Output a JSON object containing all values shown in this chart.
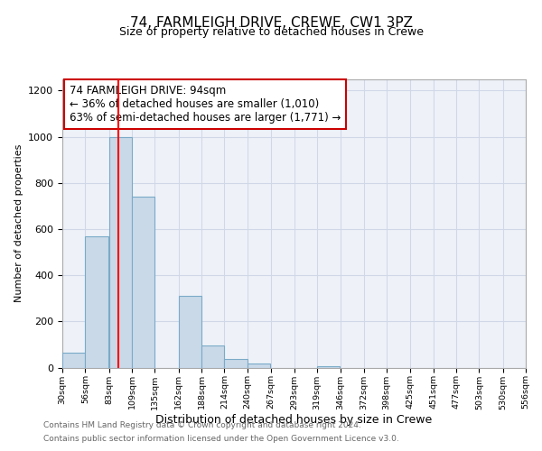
{
  "title1": "74, FARMLEIGH DRIVE, CREWE, CW1 3PZ",
  "title2": "Size of property relative to detached houses in Crewe",
  "xlabel": "Distribution of detached houses by size in Crewe",
  "ylabel": "Number of detached properties",
  "bar_left_edges": [
    30,
    56,
    83,
    109,
    135,
    162,
    188,
    214,
    240,
    267,
    293,
    319,
    346,
    372,
    398,
    425,
    451,
    477,
    503,
    530
  ],
  "bar_heights": [
    65,
    570,
    1000,
    740,
    0,
    310,
    95,
    38,
    18,
    0,
    0,
    5,
    0,
    0,
    0,
    0,
    0,
    0,
    0,
    0
  ],
  "bin_width": 26,
  "bar_color": "#c9d9e8",
  "bar_edgecolor": "#7aaac8",
  "bar_linewidth": 0.8,
  "ylim": [
    0,
    1250
  ],
  "yticks": [
    0,
    200,
    400,
    600,
    800,
    1000,
    1200
  ],
  "xtick_labels": [
    "30sqm",
    "56sqm",
    "83sqm",
    "109sqm",
    "135sqm",
    "162sqm",
    "188sqm",
    "214sqm",
    "240sqm",
    "267sqm",
    "293sqm",
    "319sqm",
    "346sqm",
    "372sqm",
    "398sqm",
    "425sqm",
    "451sqm",
    "477sqm",
    "503sqm",
    "530sqm",
    "556sqm"
  ],
  "xtick_positions": [
    30,
    56,
    83,
    109,
    135,
    162,
    188,
    214,
    240,
    267,
    293,
    319,
    346,
    372,
    398,
    425,
    451,
    477,
    503,
    530,
    556
  ],
  "red_line_x": 94,
  "annotation_text": "74 FARMLEIGH DRIVE: 94sqm\n← 36% of detached houses are smaller (1,010)\n63% of semi-detached houses are larger (1,771) →",
  "annotation_box_color": "#ffffff",
  "annotation_box_edgecolor": "#cc0000",
  "grid_color": "#d0d8e8",
  "bg_color": "#eef2f8",
  "footer1": "Contains HM Land Registry data © Crown copyright and database right 2024.",
  "footer2": "Contains public sector information licensed under the Open Government Licence v3.0.",
  "title1_fontsize": 11,
  "title2_fontsize": 9,
  "xlabel_fontsize": 9,
  "ylabel_fontsize": 8,
  "xtick_fontsize": 6.8,
  "ytick_fontsize": 8,
  "annotation_fontsize": 8.5,
  "footer_fontsize": 6.5
}
